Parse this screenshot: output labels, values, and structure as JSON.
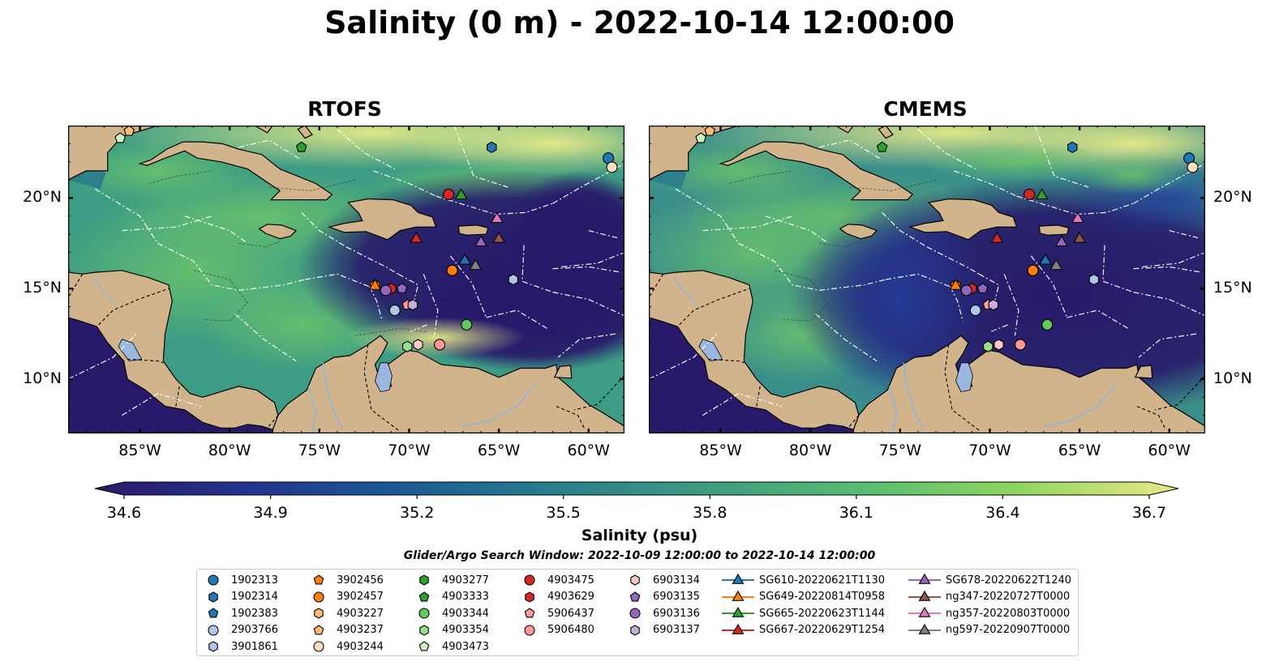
{
  "title": "Salinity (0 m) - 2022-10-14 12:00:00",
  "panels": [
    {
      "title": "RTOFS"
    },
    {
      "title": "CMEMS"
    }
  ],
  "lon_ticks": [
    "85°W",
    "80°W",
    "75°W",
    "70°W",
    "65°W",
    "60°W"
  ],
  "lat_ticks": [
    "20°N",
    "15°N",
    "10°N"
  ],
  "colorbar": {
    "label": "Salinity (psu)",
    "min": 34.6,
    "max": 36.7,
    "ticks": [
      "34.6",
      "34.9",
      "35.2",
      "35.5",
      "35.8",
      "36.1",
      "36.4",
      "36.7"
    ],
    "colors": [
      "#2a1a66",
      "#23338e",
      "#1b5a94",
      "#2b7f8d",
      "#3f9d80",
      "#58bd72",
      "#8fd460",
      "#e9ea86"
    ]
  },
  "search_window": "Glider/Argo Search Window: 2022-10-09 12:00:00 to 2022-10-14 12:00:00",
  "land_color": "#d2b48c",
  "legend": [
    {
      "label": "1902313",
      "marker": "circle",
      "color": "#1f77b4"
    },
    {
      "label": "1902314",
      "marker": "hexagon",
      "color": "#1f77b4"
    },
    {
      "label": "1902383",
      "marker": "pentagon",
      "color": "#1f77b4"
    },
    {
      "label": "2903766",
      "marker": "circle",
      "color": "#aec7e8"
    },
    {
      "label": "3901861",
      "marker": "hexagon",
      "color": "#aec7e8"
    },
    {
      "label": "3902456",
      "marker": "pentagon",
      "color": "#ff7f0e"
    },
    {
      "label": "3902457",
      "marker": "circle",
      "color": "#ff7f0e"
    },
    {
      "label": "4903227",
      "marker": "hexagon",
      "color": "#ffbb78"
    },
    {
      "label": "4903237",
      "marker": "pentagon",
      "color": "#ffbb78"
    },
    {
      "label": "4903244",
      "marker": "circle",
      "color": "#ffe0c0"
    },
    {
      "label": "4903277",
      "marker": "hexagon",
      "color": "#2ca02c"
    },
    {
      "label": "4903333",
      "marker": "pentagon",
      "color": "#2ca02c"
    },
    {
      "label": "4903344",
      "marker": "circle",
      "color": "#63c95a"
    },
    {
      "label": "4903354",
      "marker": "hexagon",
      "color": "#98df8a"
    },
    {
      "label": "4903473",
      "marker": "pentagon",
      "color": "#ccf2c0"
    },
    {
      "label": "4903475",
      "marker": "circle",
      "color": "#d62728"
    },
    {
      "label": "4903629",
      "marker": "hexagon",
      "color": "#d62728"
    },
    {
      "label": "5906437",
      "marker": "pentagon",
      "color": "#ff9896"
    },
    {
      "label": "5906480",
      "marker": "circle",
      "color": "#ff9896"
    },
    {
      "label": "6903134",
      "marker": "hexagon",
      "color": "#ffc8c4"
    },
    {
      "label": "6903135",
      "marker": "pentagon",
      "color": "#9467bd"
    },
    {
      "label": "6903136",
      "marker": "circle",
      "color": "#9467bd"
    },
    {
      "label": "6903137",
      "marker": "hexagon",
      "color": "#c5b0d5"
    },
    {
      "label": "SG610-20220621T1130",
      "marker": "triangle",
      "color": "#1f77b4"
    },
    {
      "label": "SG649-20220814T0958",
      "marker": "triangle",
      "color": "#ff7f0e"
    },
    {
      "label": "SG665-20220623T1144",
      "marker": "triangle",
      "color": "#2ca02c"
    },
    {
      "label": "SG667-20220629T1254",
      "marker": "triangle",
      "color": "#d62728"
    },
    {
      "label": "SG678-20220622T1240",
      "marker": "triangle",
      "color": "#9467bd"
    },
    {
      "label": "ng347-20220727T0000",
      "marker": "triangle",
      "color": "#8c564b"
    },
    {
      "label": "ng357-20220803T0000",
      "marker": "triangle",
      "color": "#e377c2"
    },
    {
      "label": "ng597-20220907T0000",
      "marker": "triangle",
      "color": "#7f7f7f"
    }
  ],
  "map_markers": [
    {
      "id": "1902313",
      "lon": -58.9,
      "lat": 22.2
    },
    {
      "id": "1902314",
      "lon": -65.4,
      "lat": 22.8
    },
    {
      "id": "2903766",
      "lon": -70.8,
      "lat": 13.8
    },
    {
      "id": "3901861",
      "lon": -64.2,
      "lat": 15.5
    },
    {
      "id": "3902456",
      "lon": -71.9,
      "lat": 15.2
    },
    {
      "id": "3902457",
      "lon": -67.6,
      "lat": 16.0
    },
    {
      "id": "4903237",
      "lon": -85.6,
      "lat": 23.7
    },
    {
      "id": "4903244",
      "lon": -58.7,
      "lat": 21.7
    },
    {
      "id": "4903333",
      "lon": -76.0,
      "lat": 22.8
    },
    {
      "id": "4903344",
      "lon": -66.8,
      "lat": 13.0
    },
    {
      "id": "4903354",
      "lon": -70.1,
      "lat": 11.8
    },
    {
      "id": "4903473",
      "lon": -86.1,
      "lat": 23.3
    },
    {
      "id": "4903475",
      "lon": -67.8,
      "lat": 20.2
    },
    {
      "id": "4903629",
      "lon": -71.0,
      "lat": 15.0
    },
    {
      "id": "5906437",
      "lon": -70.1,
      "lat": 14.1
    },
    {
      "id": "5906480",
      "lon": -68.3,
      "lat": 11.9
    },
    {
      "id": "6903134",
      "lon": -69.5,
      "lat": 11.9
    },
    {
      "id": "6903135",
      "lon": -70.4,
      "lat": 15.0
    },
    {
      "id": "6903136",
      "lon": -71.3,
      "lat": 14.9
    },
    {
      "id": "6903137",
      "lon": -69.8,
      "lat": 14.1
    },
    {
      "id": "SG610-20220621T1130",
      "lon": -66.9,
      "lat": 16.6
    },
    {
      "id": "SG649-20220814T0958",
      "lon": -71.9,
      "lat": 15.2
    },
    {
      "id": "SG665-20220623T1144",
      "lon": -67.1,
      "lat": 20.2
    },
    {
      "id": "SG667-20220629T1254",
      "lon": -69.6,
      "lat": 17.8
    },
    {
      "id": "SG678-20220622T1240",
      "lon": -66.0,
      "lat": 17.6
    },
    {
      "id": "ng347-20220727T0000",
      "lon": -65.0,
      "lat": 17.8
    },
    {
      "id": "ng357-20220803T0000",
      "lon": -65.1,
      "lat": 18.9
    },
    {
      "id": "ng597-20220907T0000",
      "lon": -66.3,
      "lat": 16.3
    }
  ]
}
